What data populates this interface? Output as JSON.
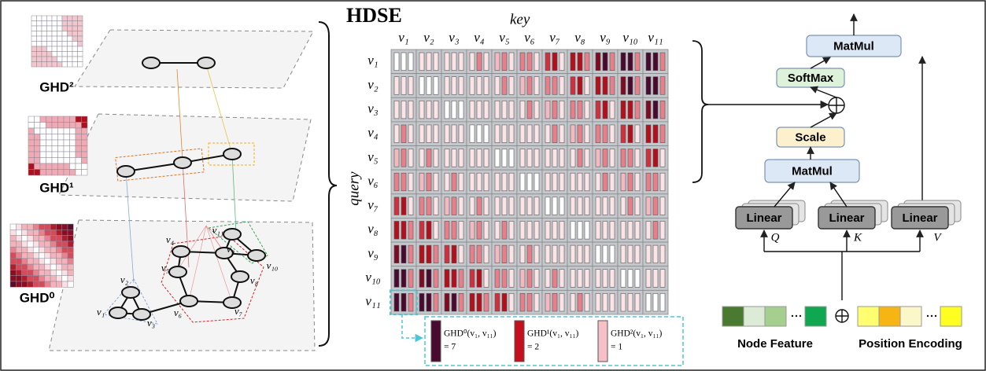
{
  "left": {
    "ghd_labels": [
      "GHD²",
      "GHD¹",
      "GHD⁰"
    ],
    "nodes": [
      "v₁",
      "v₂",
      "v₃",
      "v₄",
      "v₅",
      "v₆",
      "v₇",
      "v₈",
      "v₉",
      "v₁₀",
      "v₁₁"
    ]
  },
  "heatmap": {
    "title": "HDSE",
    "key_label": "key",
    "query_label": "query",
    "columns": [
      "v₁",
      "v₂",
      "v₃",
      "v₄",
      "v₅",
      "v₆",
      "v₇",
      "v₈",
      "v₉",
      "v₁₀",
      "v₁₁"
    ],
    "rows": [
      "v₁",
      "v₂",
      "v₃",
      "v₄",
      "v₅",
      "v₆",
      "v₇",
      "v₈",
      "v₉",
      "v₁₀",
      "v₁₁"
    ]
  },
  "legend": {
    "items": [
      {
        "label": "GHD⁰(v₁, v₁₁)",
        "value": "= 7"
      },
      {
        "label": "GHD¹(v₁, v₁₁)",
        "value": "= 2"
      },
      {
        "label": "GHD²(v₁, v₁₁)",
        "value": "= 1"
      }
    ]
  },
  "transformer": {
    "matmul_top": "MatMul",
    "softmax": "SoftMax",
    "scale": "Scale",
    "matmul": "MatMul",
    "linear": [
      "Linear",
      "Linear",
      "Linear"
    ],
    "inputs": [
      "Q",
      "K",
      "V"
    ],
    "node_feature": "Node Feature",
    "position_encoding": "Position Encoding"
  }
}
